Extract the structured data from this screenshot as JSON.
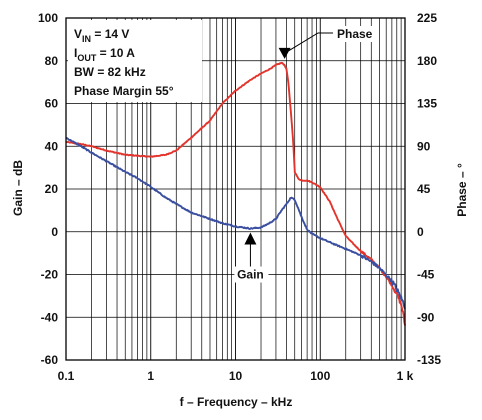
{
  "chart_data": {
    "type": "line",
    "title": "",
    "xlabel": "f – Frequency – kHz",
    "ylabel_left": "Gain – dB",
    "ylabel_right": "Phase – °",
    "x_scale": "log",
    "x_range": [
      0.1,
      1000
    ],
    "x_ticks": [
      {
        "value": 0.1,
        "label": "0.1"
      },
      {
        "value": 1,
        "label": "1"
      },
      {
        "value": 10,
        "label": "10"
      },
      {
        "value": 100,
        "label": "100"
      },
      {
        "value": 1000,
        "label": "1 k"
      }
    ],
    "y_left_range": [
      -60,
      100
    ],
    "y_left_ticks": [
      "100",
      "80",
      "60",
      "40",
      "20",
      "0",
      "-20",
      "-40",
      "-60"
    ],
    "y_right_range": [
      -135,
      225
    ],
    "y_right_ticks": [
      "225",
      "180",
      "135",
      "90",
      "45",
      "0",
      "-45",
      "-90",
      "-135"
    ],
    "grid": true,
    "annotations": {
      "conditions": [
        {
          "main": "V",
          "sub": "IN",
          "rest": " = 14 V"
        },
        {
          "main": "I",
          "sub": "OUT",
          "rest": " = 10 A"
        },
        {
          "main": "BW = 82 kHz",
          "sub": "",
          "rest": ""
        },
        {
          "main": "Phase Margin 55°",
          "sub": "",
          "rest": ""
        }
      ],
      "phase_label": "Phase",
      "gain_label": "Gain"
    },
    "series": [
      {
        "name": "Phase",
        "axis": "right",
        "color": "#e2342c",
        "unit": "deg",
        "x": [
          0.1,
          0.15,
          0.2,
          0.3,
          0.5,
          0.7,
          1,
          1.5,
          2,
          3,
          5,
          7,
          10,
          15,
          20,
          25,
          30,
          35,
          38,
          40,
          42,
          45,
          48,
          50,
          55,
          60,
          70,
          80,
          100,
          130,
          160,
          200,
          250,
          300,
          400,
          500,
          600,
          700,
          800,
          900,
          950,
          1000
        ],
        "y": [
          94.5,
          92.3,
          90,
          85.5,
          81,
          80,
          79,
          81,
          85.5,
          99,
          117,
          135,
          148.5,
          159.8,
          166.5,
          171,
          175.5,
          177.8,
          175.5,
          171,
          157.5,
          126,
          94.5,
          63,
          56,
          54,
          54,
          52,
          47,
          31.5,
          13.5,
          -4.5,
          -13.5,
          -20.3,
          -29.3,
          -38.3,
          -47.3,
          -56.3,
          -65.3,
          -76.5,
          -85.5,
          -99
        ]
      },
      {
        "name": "Gain",
        "axis": "left",
        "color": "#3b4fa0",
        "unit": "dB",
        "x": [
          0.1,
          0.15,
          0.2,
          0.3,
          0.5,
          0.7,
          1,
          1.5,
          2,
          3,
          5,
          7,
          10,
          15,
          20,
          25,
          30,
          35,
          40,
          45,
          50,
          55,
          60,
          70,
          80,
          100,
          150,
          200,
          300,
          400,
          500,
          700,
          800,
          900,
          950,
          1000
        ],
        "y": [
          44,
          40,
          37,
          33,
          28,
          25,
          21,
          16,
          13,
          9,
          6,
          4,
          2.5,
          1.5,
          2,
          4,
          6,
          10,
          13,
          16,
          15,
          11,
          7,
          1,
          -1,
          -3,
          -6,
          -8,
          -11,
          -14,
          -17,
          -23,
          -27,
          -31,
          -33,
          -35
        ]
      }
    ]
  }
}
